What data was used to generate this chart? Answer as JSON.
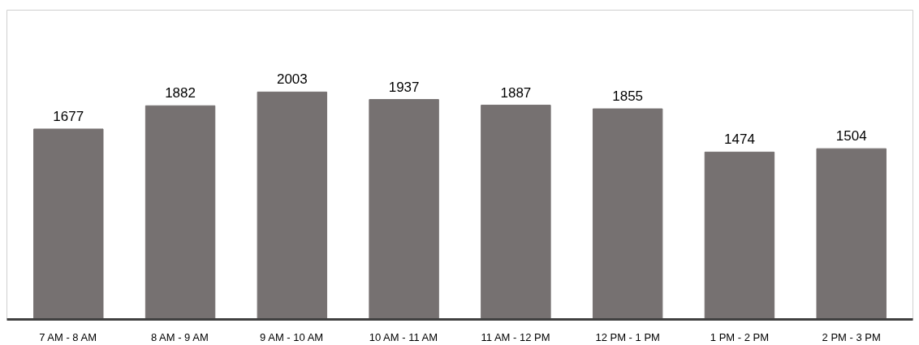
{
  "chart_data": {
    "type": "bar",
    "categories": [
      "7 AM - 8 AM",
      "8 AM - 9 AM",
      "9 AM - 10 AM",
      "10 AM - 11 AM",
      "11 AM - 12 PM",
      "12 PM - 1 PM",
      "1 PM - 2 PM",
      "2 PM - 3 PM"
    ],
    "values": [
      1677,
      1882,
      2003,
      1937,
      1887,
      1855,
      1474,
      1504
    ],
    "color": "#767171",
    "data_labels": true
  }
}
